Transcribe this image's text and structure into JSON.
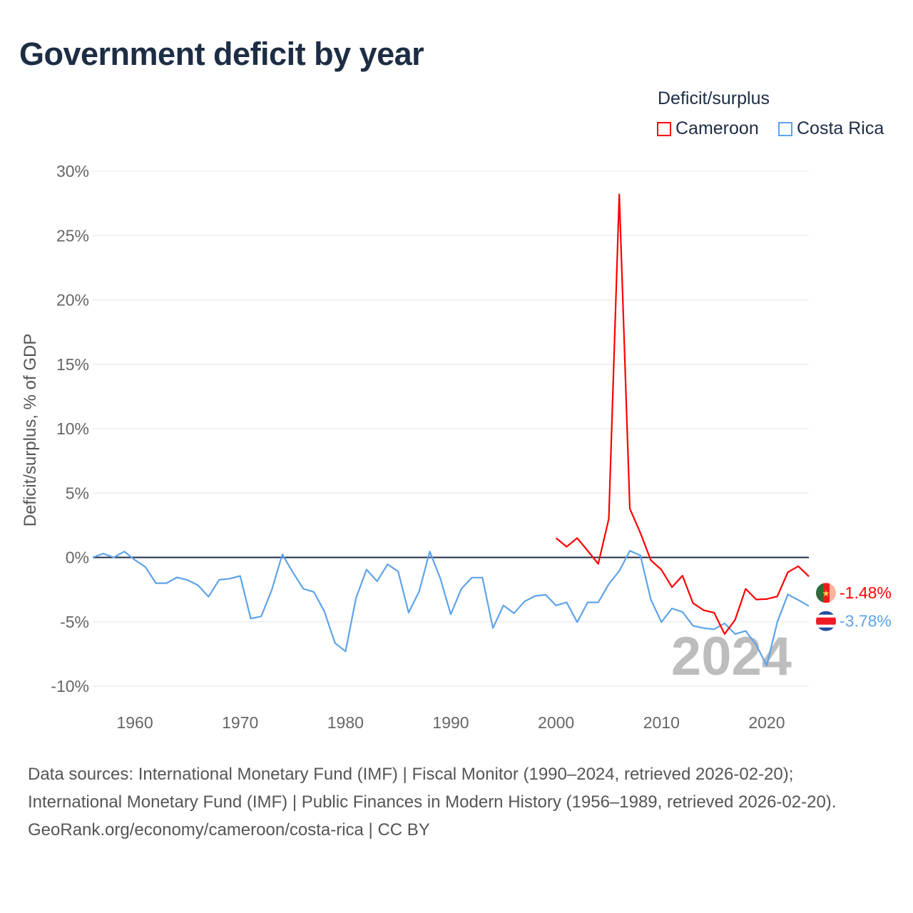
{
  "title": "Government deficit by year",
  "chart_data": {
    "type": "line",
    "title": "Government deficit by year",
    "ylabel": "Deficit/surplus, % of GDP",
    "xlabel": "",
    "xlim": [
      1956,
      2024
    ],
    "ylim": [
      -10,
      30
    ],
    "yticks": [
      -10,
      -5,
      0,
      5,
      10,
      15,
      20,
      25,
      30
    ],
    "ytick_labels": [
      "-10%",
      "-5%",
      "0%",
      "5%",
      "10%",
      "15%",
      "20%",
      "25%",
      "30%"
    ],
    "xticks": [
      1960,
      1970,
      1980,
      1990,
      2000,
      2010,
      2020
    ],
    "xtick_labels": [
      "1960",
      "1970",
      "1980",
      "1990",
      "2000",
      "2010",
      "2020"
    ],
    "grid": true,
    "legend_title": "Deficit/surplus",
    "legend_position": "top-right",
    "watermark_year": "2024",
    "series": [
      {
        "name": "Cameroon",
        "color": "#ff0000",
        "start_year": 2000,
        "end_label": "-1.48%",
        "values": [
          1.5,
          0.83,
          1.5,
          0.52,
          -0.5,
          3.0,
          28.2,
          3.79,
          1.9,
          -0.22,
          -0.96,
          -2.31,
          -1.42,
          -3.55,
          -4.1,
          -4.29,
          -5.95,
          -4.84,
          -2.44,
          -3.27,
          -3.23,
          -3.03,
          -1.15,
          -0.68,
          -1.48
        ]
      },
      {
        "name": "Costa Rica",
        "color": "#5ea3ea",
        "start_year": 1956,
        "end_label": "-3.78%",
        "values": [
          0.0,
          0.3,
          0.0,
          0.46,
          -0.2,
          -0.74,
          -2.0,
          -2.0,
          -1.55,
          -1.75,
          -2.16,
          -3.05,
          -1.74,
          -1.65,
          -1.44,
          -4.75,
          -4.58,
          -2.53,
          0.24,
          -1.15,
          -2.44,
          -2.68,
          -4.2,
          -6.64,
          -7.3,
          -3.16,
          -0.94,
          -1.85,
          -0.54,
          -1.09,
          -4.29,
          -2.63,
          0.46,
          -1.61,
          -4.42,
          -2.44,
          -1.57,
          -1.57,
          -5.49,
          -3.73,
          -4.34,
          -3.42,
          -3.0,
          -2.9,
          -3.73,
          -3.49,
          -5.03,
          -3.49,
          -3.49,
          -2.07,
          -1.05,
          0.52,
          0.15,
          -3.27,
          -5.03,
          -3.96,
          -4.23,
          -5.31,
          -5.49,
          -5.58,
          -5.12,
          -5.95,
          -5.71,
          -6.79,
          -8.41,
          -5.03,
          -2.87,
          -3.31,
          -3.78
        ]
      }
    ]
  },
  "sources": {
    "line1": "Data sources: International Monetary Fund (IMF) | Fiscal Monitor (1990–2024, retrieved 2026-02-20); International Monetary Fund (IMF) | Public Finances in Modern History (1956–1989, retrieved 2026-02-20).",
    "line2": "GeoRank.org/economy/cameroon/costa-rica | CC BY"
  }
}
